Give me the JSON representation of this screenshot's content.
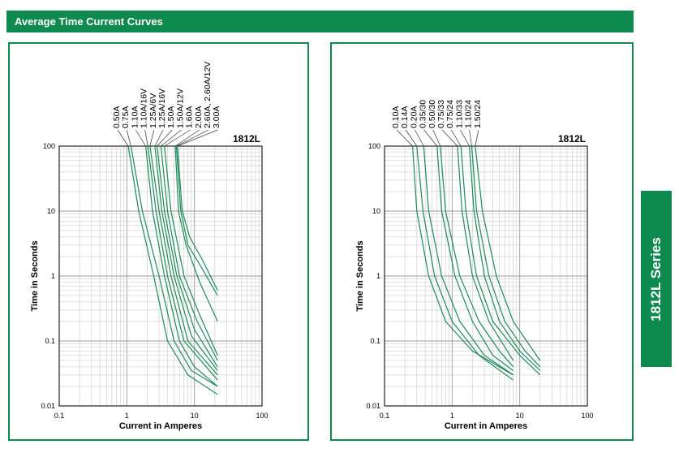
{
  "header": {
    "title": "Average Time Current Curves"
  },
  "side_tab": {
    "label": "1812L Series"
  },
  "chart_data": [
    {
      "type": "line",
      "title": "1812L",
      "xlabel": "Current in Amperes",
      "ylabel": "Time in Seconds",
      "xscale": "log",
      "yscale": "log",
      "xlim": [
        0.1,
        100
      ],
      "ylim": [
        0.01,
        100
      ],
      "xticks": [
        "0.1",
        "1",
        "10",
        "100"
      ],
      "yticks": [
        "100",
        "10",
        "1",
        "0.1",
        "0.01"
      ],
      "grid": true,
      "series": [
        {
          "name": "0.50A",
          "points": [
            [
              1.05,
              100
            ],
            [
              1.5,
              10
            ],
            [
              2.5,
              1
            ],
            [
              4,
              0.1
            ],
            [
              8,
              0.03
            ],
            [
              22,
              0.015
            ]
          ]
        },
        {
          "name": "0.75A",
          "points": [
            [
              1.15,
              100
            ],
            [
              1.7,
              10
            ],
            [
              3,
              1
            ],
            [
              5,
              0.1
            ],
            [
              9,
              0.035
            ],
            [
              22,
              0.02
            ]
          ]
        },
        {
          "name": "1.10A",
          "points": [
            [
              1.9,
              100
            ],
            [
              2.4,
              10
            ],
            [
              3.6,
              1
            ],
            [
              6,
              0.1
            ],
            [
              10,
              0.04
            ],
            [
              22,
              0.02
            ]
          ]
        },
        {
          "name": "1.10A/16V",
          "points": [
            [
              2.05,
              100
            ],
            [
              2.7,
              10
            ],
            [
              4,
              1
            ],
            [
              7,
              0.1
            ],
            [
              22,
              0.025
            ]
          ]
        },
        {
          "name": "1.25A/6V",
          "points": [
            [
              2.2,
              100
            ],
            [
              3,
              10
            ],
            [
              4.5,
              1
            ],
            [
              8,
              0.1
            ],
            [
              22,
              0.03
            ]
          ]
        },
        {
          "name": "1.25A/16V",
          "points": [
            [
              2.6,
              100
            ],
            [
              3.3,
              10
            ],
            [
              5,
              1
            ],
            [
              9,
              0.12
            ],
            [
              22,
              0.035
            ]
          ]
        },
        {
          "name": "1.50A",
          "points": [
            [
              2.8,
              100
            ],
            [
              3.6,
              10
            ],
            [
              5.5,
              1
            ],
            [
              10,
              0.15
            ],
            [
              22,
              0.04
            ]
          ]
        },
        {
          "name": "1.50A/12V",
          "points": [
            [
              3.2,
              100
            ],
            [
              4,
              10
            ],
            [
              6,
              1
            ],
            [
              11,
              0.2
            ],
            [
              22,
              0.05
            ]
          ]
        },
        {
          "name": "1.60A",
          "points": [
            [
              3.6,
              100
            ],
            [
              4.5,
              10
            ],
            [
              7,
              1
            ],
            [
              12,
              0.25
            ],
            [
              22,
              0.06
            ]
          ]
        },
        {
          "name": "2.00A",
          "points": [
            [
              5.2,
              100
            ],
            [
              5.8,
              10
            ],
            [
              7.5,
              3
            ],
            [
              12,
              0.8
            ],
            [
              22,
              0.2
            ]
          ]
        },
        {
          "name": "2.60A, 2.60A/12V",
          "points": [
            [
              5.4,
              100
            ],
            [
              6.3,
              10
            ],
            [
              8,
              3
            ],
            [
              12,
              1.5
            ],
            [
              22,
              0.5
            ]
          ]
        },
        {
          "name": "3.00A",
          "points": [
            [
              5.6,
              100
            ],
            [
              6.6,
              10
            ],
            [
              8.5,
              4
            ],
            [
              13,
              1.8
            ],
            [
              22,
              0.6
            ]
          ]
        }
      ]
    },
    {
      "type": "line",
      "title": "1812L",
      "xlabel": "Current in Amperes",
      "ylabel": "Time in Seconds",
      "xscale": "log",
      "yscale": "log",
      "xlim": [
        0.1,
        100
      ],
      "ylim": [
        0.01,
        100
      ],
      "xticks": [
        "0.1",
        "1",
        "10",
        "100"
      ],
      "yticks": [
        "100",
        "10",
        "1",
        "0.1",
        "0.01"
      ],
      "grid": true,
      "series": [
        {
          "name": "0.10A",
          "points": [
            [
              0.26,
              100
            ],
            [
              0.3,
              10
            ],
            [
              0.45,
              1
            ],
            [
              0.8,
              0.2
            ],
            [
              2,
              0.07
            ],
            [
              8,
              0.03
            ]
          ]
        },
        {
          "name": "0.14A",
          "points": [
            [
              0.3,
              100
            ],
            [
              0.37,
              10
            ],
            [
              0.55,
              1
            ],
            [
              1,
              0.2
            ],
            [
              2.5,
              0.06
            ],
            [
              8,
              0.025
            ]
          ]
        },
        {
          "name": "0.20A",
          "points": [
            [
              0.38,
              100
            ],
            [
              0.45,
              10
            ],
            [
              0.7,
              1
            ],
            [
              1.3,
              0.2
            ],
            [
              3,
              0.06
            ],
            [
              8,
              0.03
            ]
          ]
        },
        {
          "name": "0.35/30",
          "points": [
            [
              0.6,
              100
            ],
            [
              0.7,
              10
            ],
            [
              1.1,
              1
            ],
            [
              2,
              0.2
            ],
            [
              4,
              0.06
            ],
            [
              8,
              0.035
            ]
          ]
        },
        {
          "name": "0.50/30",
          "points": [
            [
              0.67,
              100
            ],
            [
              0.8,
              10
            ],
            [
              1.3,
              1
            ],
            [
              2.5,
              0.2
            ],
            [
              5,
              0.07
            ],
            [
              8,
              0.04
            ]
          ]
        },
        {
          "name": "0.75/33",
          "points": [
            [
              1.2,
              100
            ],
            [
              1.4,
              10
            ],
            [
              2,
              1
            ],
            [
              3.5,
              0.2
            ],
            [
              8,
              0.05
            ]
          ]
        },
        {
          "name": "0.75/24",
          "points": [
            [
              1.35,
              100
            ],
            [
              1.6,
              10
            ],
            [
              2.3,
              1
            ],
            [
              4,
              0.2
            ],
            [
              10,
              0.06
            ],
            [
              20,
              0.03
            ]
          ]
        },
        {
          "name": "1.10/33",
          "points": [
            [
              1.8,
              100
            ],
            [
              2.1,
              10
            ],
            [
              3,
              1
            ],
            [
              5,
              0.2
            ],
            [
              10,
              0.07
            ],
            [
              20,
              0.035
            ]
          ]
        },
        {
          "name": "1.10/24",
          "points": [
            [
              1.95,
              100
            ],
            [
              2.3,
              10
            ],
            [
              3.5,
              1
            ],
            [
              6,
              0.2
            ],
            [
              12,
              0.07
            ],
            [
              20,
              0.04
            ]
          ]
        },
        {
          "name": "1.50/24",
          "points": [
            [
              2.2,
              100
            ],
            [
              2.8,
              10
            ],
            [
              4.5,
              1
            ],
            [
              8,
              0.2
            ],
            [
              20,
              0.05
            ]
          ]
        }
      ]
    }
  ]
}
